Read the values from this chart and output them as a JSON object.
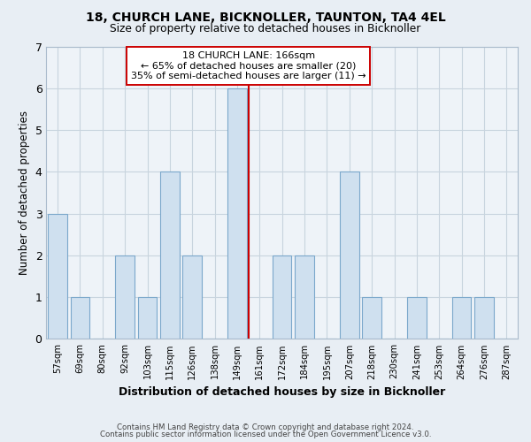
{
  "title": "18, CHURCH LANE, BICKNOLLER, TAUNTON, TA4 4EL",
  "subtitle": "Size of property relative to detached houses in Bicknoller",
  "xlabel": "Distribution of detached houses by size in Bicknoller",
  "ylabel": "Number of detached properties",
  "bar_color": "#cfe0ef",
  "bar_edge_color": "#7ba8cb",
  "marker_color": "#cc0000",
  "annotation_title": "18 CHURCH LANE: 166sqm",
  "annotation_line1": "← 65% of detached houses are smaller (20)",
  "annotation_line2": "35% of semi-detached houses are larger (11) →",
  "bin_labels": [
    "57sqm",
    "69sqm",
    "80sqm",
    "92sqm",
    "103sqm",
    "115sqm",
    "126sqm",
    "138sqm",
    "149sqm",
    "161sqm",
    "172sqm",
    "184sqm",
    "195sqm",
    "207sqm",
    "218sqm",
    "230sqm",
    "241sqm",
    "253sqm",
    "264sqm",
    "276sqm",
    "287sqm"
  ],
  "counts": [
    3,
    1,
    0,
    2,
    1,
    4,
    2,
    0,
    6,
    0,
    2,
    2,
    0,
    4,
    1,
    0,
    1,
    0,
    1,
    1,
    0
  ],
  "marker_bin_idx": 9,
  "ylim": [
    0,
    7
  ],
  "yticks": [
    0,
    1,
    2,
    3,
    4,
    5,
    6,
    7
  ],
  "footer_line1": "Contains HM Land Registry data © Crown copyright and database right 2024.",
  "footer_line2": "Contains public sector information licensed under the Open Government Licence v3.0.",
  "background_color": "#e8eef4",
  "plot_background": "#eef3f8",
  "grid_color": "#c8d4de"
}
